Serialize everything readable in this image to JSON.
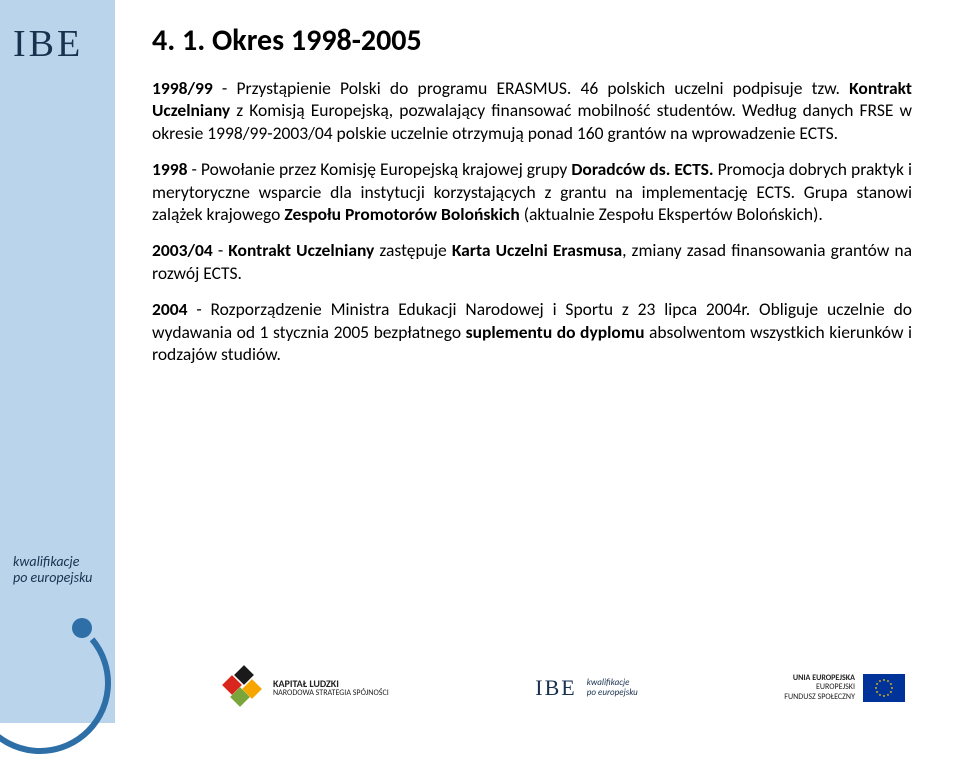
{
  "logo_top": "IBE",
  "sidebar_label_line1": "kwalifikacje",
  "sidebar_label_line2": "po europejsku",
  "title": "4. 1. Okres 1998-2005",
  "paragraphs": [
    {
      "runs": [
        {
          "t": "1998/99",
          "b": true
        },
        {
          "t": " - Przystąpienie Polski do programu ERASMUS. 46 polskich uczelni podpisuje tzw. ",
          "b": false
        },
        {
          "t": "Kontrakt Uczelniany",
          "b": true
        },
        {
          "t": " z Komisją Europejską, pozwalający finansować mobilność studentów. Według danych FRSE w okresie 1998/99-2003/04 polskie uczelnie otrzymują ponad 160 grantów na wprowadzenie ECTS.",
          "b": false
        }
      ]
    },
    {
      "runs": [
        {
          "t": "1998",
          "b": true
        },
        {
          "t": " - Powołanie przez Komisję Europejską krajowej grupy ",
          "b": false
        },
        {
          "t": "Doradców ds. ECTS.",
          "b": true
        },
        {
          "t": " Promocja dobrych praktyk i merytoryczne  wsparcie dla instytucji korzystających z grantu na implementację ECTS. Grupa stanowi zalążek krajowego ",
          "b": false
        },
        {
          "t": "Zespołu Promotorów Bolońskich",
          "b": true
        },
        {
          "t": " (aktualnie Zespołu Ekspertów Bolońskich).",
          "b": false
        }
      ]
    },
    {
      "runs": [
        {
          "t": "2003/04",
          "b": true
        },
        {
          "t": " - ",
          "b": false
        },
        {
          "t": "Kontrakt Uczelniany",
          "b": true
        },
        {
          "t": " zastępuje ",
          "b": false
        },
        {
          "t": "Karta Uczelni Erasmusa",
          "b": true
        },
        {
          "t": ", zmiany zasad finansowania grantów na rozwój ECTS.",
          "b": false
        }
      ]
    },
    {
      "runs": [
        {
          "t": "2004",
          "b": true
        },
        {
          "t": " - Rozporządzenie Ministra Edukacji Narodowej i Sportu z 23 lipca 2004r. Obliguje uczelnie do wydawania od 1 stycznia 2005 bezpłatnego ",
          "b": false
        },
        {
          "t": "suplementu do dyplomu",
          "b": true
        },
        {
          "t": " absolwentom wszystkich kierunków i rodzajów studiów.",
          "b": false
        }
      ]
    }
  ],
  "footer": {
    "kl_title": "KAPITAŁ LUDZKI",
    "kl_sub": "NARODOWA STRATEGIA SPÓJNOŚCI",
    "ibe": "IBE",
    "ibe_sub1": "kwalifikacje",
    "ibe_sub2": "po europejsku",
    "eu_line1": "UNIA EUROPEJSKA",
    "eu_line2": "EUROPEJSKI",
    "eu_line3": "FUNDUSZ SPOŁECZNY"
  },
  "colors": {
    "band": "#b9d4eb",
    "navy": "#18314f",
    "curve": "#2f6fa8"
  }
}
